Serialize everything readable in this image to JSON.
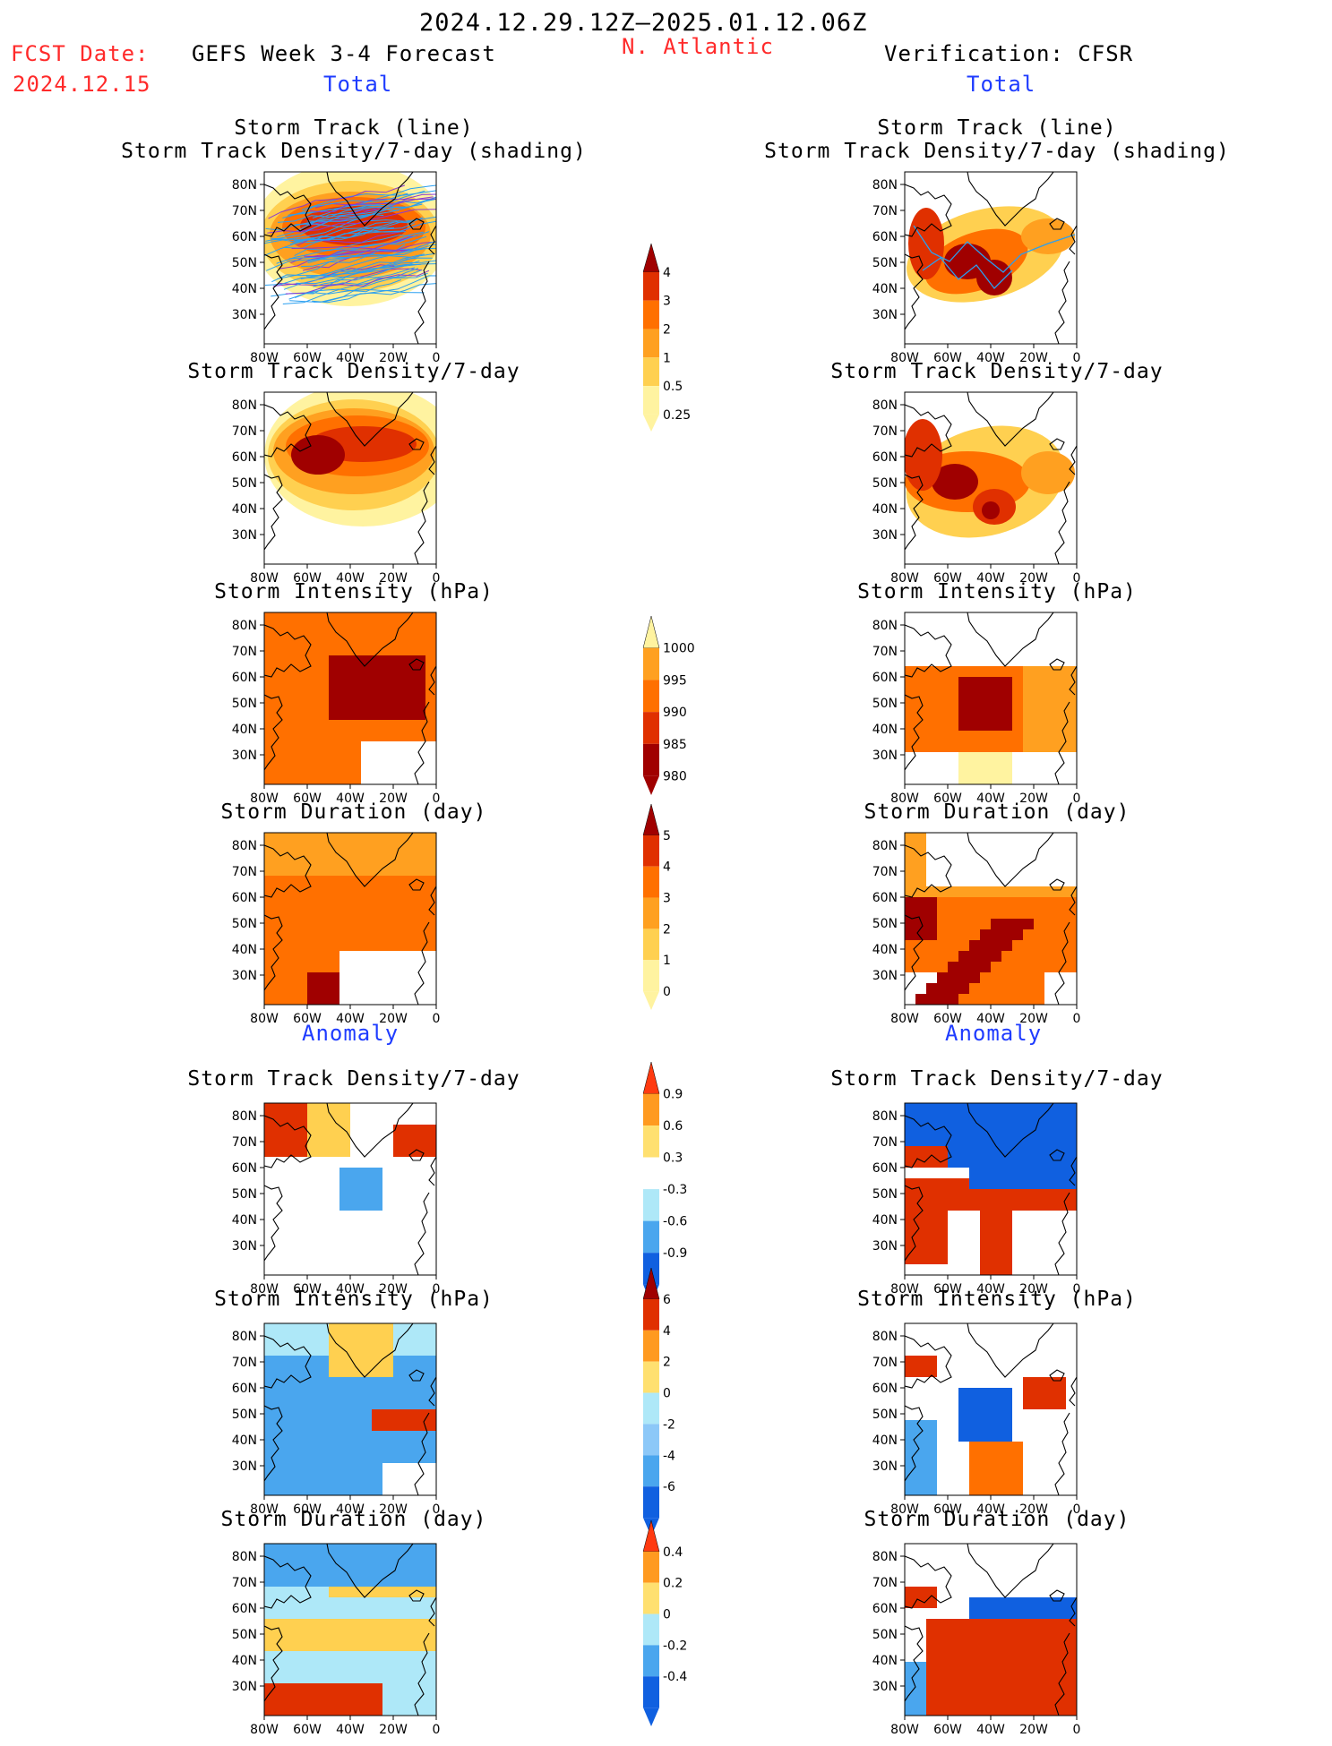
{
  "header": {
    "period": "2024.12.29.12Z–2025.01.12.06Z",
    "fcst_label": "FCST Date:",
    "fcst_date": "2024.12.15",
    "left_title": "GEFS Week 3-4 Forecast",
    "region": "N. Atlantic",
    "right_title": "Verification: CFSR",
    "total_label": "Total",
    "anomaly_label": "Anomaly"
  },
  "panel_titles": {
    "track_line": "Storm Track (line)",
    "track_density_shading": "Storm Track Density/7-day (shading)",
    "track_density": "Storm Track Density/7-day",
    "intensity": "Storm Intensity (hPa)",
    "duration": "Storm Duration (day)"
  },
  "axes": {
    "lat_ticks": [
      "80N",
      "70N",
      "60N",
      "50N",
      "40N",
      "30N"
    ],
    "lon_ticks": [
      "80W",
      "60W",
      "40W",
      "20W",
      "0"
    ]
  },
  "colorbars": [
    {
      "name": "density-total",
      "labels": [
        "4",
        "3",
        "2",
        "1",
        "0.5",
        "0.25"
      ],
      "colors": [
        "#a00000",
        "#e03000",
        "#ff7000",
        "#ffa020",
        "#ffd050",
        "#fff3a0"
      ]
    },
    {
      "name": "intensity-total",
      "labels": [
        "1000",
        "995",
        "990",
        "985",
        "980"
      ],
      "colors": [
        "#fff3a0",
        "#ffa020",
        "#ff7000",
        "#e03000",
        "#a00000"
      ]
    },
    {
      "name": "duration-total",
      "labels": [
        "5",
        "4",
        "3",
        "2",
        "1",
        "0"
      ],
      "colors": [
        "#a00000",
        "#e03000",
        "#ff7000",
        "#ffa020",
        "#ffd050",
        "#fff3a0"
      ]
    },
    {
      "name": "density-anom",
      "labels": [
        "0.9",
        "0.6",
        "0.3",
        "-0.3",
        "-0.6",
        "-0.9"
      ],
      "colors": [
        "#ff3a10",
        "#ff9a20",
        "#ffe070",
        "#ffffff",
        "#aee8f8",
        "#4aa6ee",
        "#1060e0"
      ]
    },
    {
      "name": "intensity-anom",
      "labels": [
        "6",
        "4",
        "2",
        "0",
        "-2",
        "-4",
        "-6"
      ],
      "colors": [
        "#a00000",
        "#e03000",
        "#ff9a20",
        "#ffe070",
        "#aee8f8",
        "#8cc8f8",
        "#4aa6ee",
        "#1060e0"
      ]
    },
    {
      "name": "duration-anom",
      "labels": [
        "0.4",
        "0.2",
        "0",
        "-0.2",
        "-0.4"
      ],
      "colors": [
        "#ff3a10",
        "#ff9a20",
        "#ffe070",
        "#aee8f8",
        "#4aa6ee",
        "#1060e0"
      ]
    }
  ],
  "colors": {
    "dark_red": "#a00000",
    "red": "#e03000",
    "orange": "#ff7000",
    "light_orange": "#ffa020",
    "yellow": "#ffd050",
    "pale_yellow": "#fff3a0",
    "pale_blue": "#aee8f8",
    "mid_blue": "#4aa6ee",
    "blue": "#1060e0",
    "track_line": "#2a9ff0"
  }
}
